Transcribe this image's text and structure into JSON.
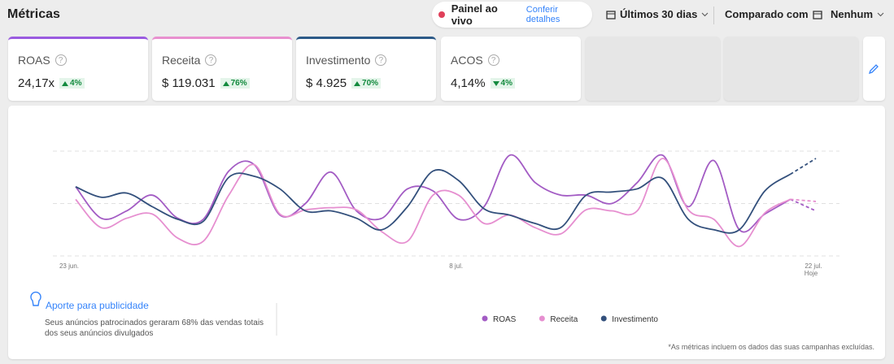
{
  "header": {
    "title": "Métricas",
    "live": "Painel ao vivo",
    "live_link": "Conferir detalhes",
    "period": "Últimos 30 dias",
    "compare_label": "Comparado com",
    "compare_value": "Nenhum"
  },
  "metrics": [
    {
      "label": "ROAS",
      "value": "24,17x",
      "change": "4%",
      "direction": "up",
      "color": "#9a5be0"
    },
    {
      "label": "Receita",
      "value": "$ 119.031",
      "change": "76%",
      "direction": "up",
      "color": "#e890cf"
    },
    {
      "label": "Investimento",
      "value": "$ 4.925",
      "change": "70%",
      "direction": "up",
      "color": "#2d5a88"
    },
    {
      "label": "ACOS",
      "value": "4,14%",
      "change": "4%",
      "direction": "down"
    }
  ],
  "chart_data": {
    "type": "line",
    "categories": [
      "23 jun.",
      null,
      null,
      null,
      null,
      null,
      null,
      null,
      null,
      null,
      null,
      null,
      null,
      null,
      null,
      "8 jul.",
      null,
      null,
      null,
      null,
      null,
      null,
      null,
      null,
      null,
      null,
      null,
      null,
      null,
      "22 jul."
    ],
    "today_label": "Hoje",
    "ylim": [
      0,
      100
    ],
    "series": [
      {
        "name": "ROAS",
        "color": "#a35cc4",
        "values": [
          66,
          36,
          43,
          58,
          36,
          35,
          81,
          87,
          39,
          50,
          80,
          43,
          36,
          64,
          62,
          35,
          47,
          96,
          70,
          58,
          58,
          50,
          70,
          96,
          47,
          91,
          25,
          40,
          54,
          43
        ]
      },
      {
        "name": "Receita",
        "color": "#e68fd0",
        "values": [
          54,
          27,
          36,
          40,
          17,
          14,
          58,
          87,
          40,
          44,
          46,
          44,
          23,
          14,
          58,
          58,
          31,
          39,
          27,
          21,
          44,
          43,
          43,
          93,
          44,
          35,
          9,
          41,
          54,
          52
        ]
      },
      {
        "name": "Investimento",
        "color": "#33507c",
        "values": [
          66,
          56,
          60,
          47,
          35,
          33,
          75,
          76,
          64,
          43,
          43,
          36,
          25,
          47,
          81,
          72,
          45,
          39,
          31,
          27,
          58,
          61,
          64,
          74,
          35,
          25,
          25,
          62,
          78,
          93
        ]
      }
    ]
  },
  "footer": {
    "tip_title": "Aporte para publicidade",
    "tip_text": "Seus anúncios patrocinados geraram 68% das vendas totais dos seus anúncios divulgados",
    "note": "*As métricas incluem os dados das suas campanhas excluídas."
  }
}
